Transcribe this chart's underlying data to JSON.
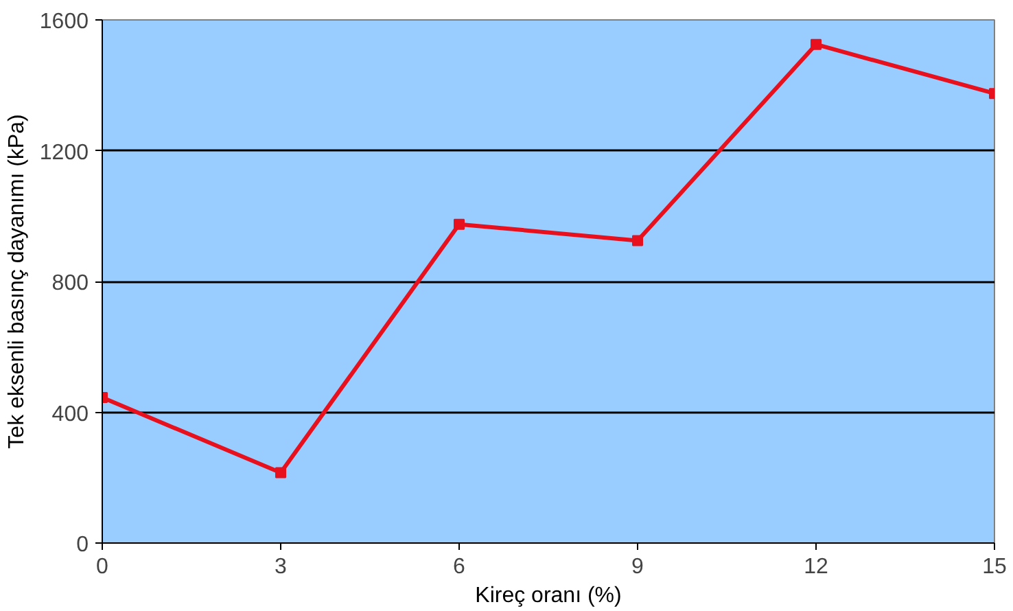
{
  "chart_data": {
    "type": "line",
    "xlabel": "Kireç oranı (%)",
    "ylabel": "Tek eksenli basınç dayanımı (kPa)",
    "x": [
      0,
      3,
      6,
      9,
      12,
      15
    ],
    "series": [
      {
        "color": "#e8101c",
        "values": [
          445,
          215,
          975,
          925,
          1525,
          1375
        ]
      }
    ],
    "xlim": [
      0,
      15
    ],
    "xticks": [
      0,
      3,
      6,
      9,
      12,
      15
    ],
    "ylim": [
      0,
      1600
    ],
    "yticks": [
      0,
      400,
      800,
      1200,
      1600
    ],
    "grid": "y",
    "marker": "square",
    "line_style": "solid"
  }
}
